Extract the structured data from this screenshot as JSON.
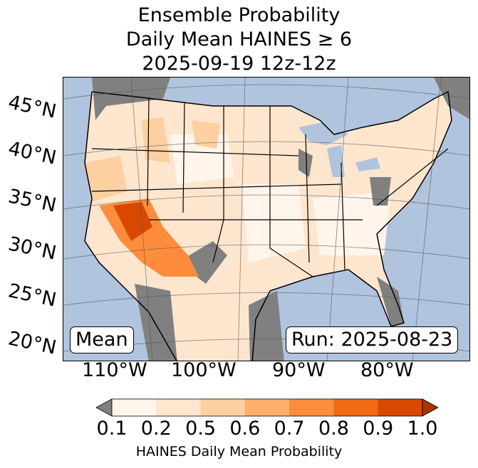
{
  "title": {
    "line1": "Ensemble Probability",
    "line2": "Daily Mean HAINES ≥ 6",
    "line3": "2025-09-19 12z-12z"
  },
  "map": {
    "lat_labels": [
      "45°N",
      "40°N",
      "35°N",
      "30°N",
      "25°N",
      "20°N"
    ],
    "lon_labels": [
      "110°W",
      "100°W",
      "90°W",
      "80°W"
    ],
    "mean_label": "Mean",
    "run_label": "Run: 2025-08-23",
    "colors": {
      "ocean": "#b0c4de",
      "below_threshold": "#808080",
      "lowest": "#fff5eb",
      "low": "#fee6ce",
      "mid": "#fdd0a2",
      "orange": "#fd8d3c",
      "dark": "#d94801"
    }
  },
  "colorbar": {
    "ticks": [
      "0.1",
      "0.2",
      "0.5",
      "0.6",
      "0.7",
      "0.8",
      "0.9",
      "1.0"
    ],
    "colors": [
      "#fff5eb",
      "#fee6ce",
      "#fdd0a2",
      "#fdae6b",
      "#fd8d3c",
      "#f16913",
      "#d94801"
    ],
    "under_color": "#808080",
    "over_color": "#a63603",
    "label": "HAINES Daily Mean Probability"
  }
}
